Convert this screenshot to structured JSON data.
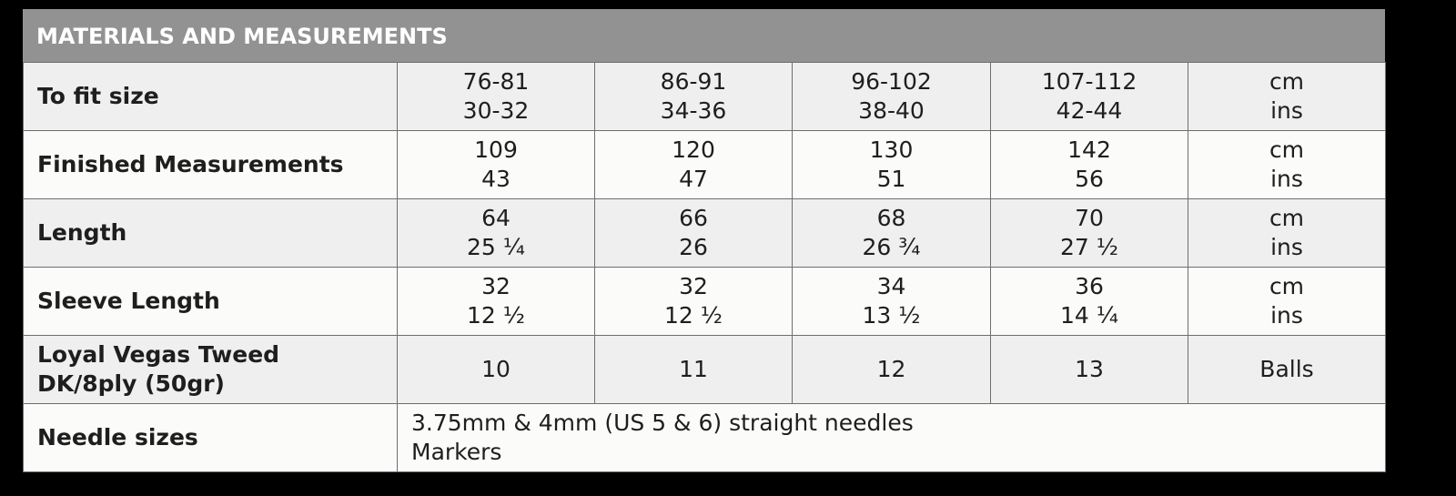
{
  "table": {
    "title": "MATERIALS AND MEASUREMENTS",
    "rows": [
      {
        "label": [
          "To fit size"
        ],
        "cells": [
          [
            "76-81",
            "30-32"
          ],
          [
            "86-91",
            "34-36"
          ],
          [
            "96-102",
            "38-40"
          ],
          [
            "107-112",
            "42-44"
          ],
          [
            "cm",
            "ins"
          ]
        ]
      },
      {
        "label": [
          "Finished Measurements"
        ],
        "cells": [
          [
            "109",
            "43"
          ],
          [
            "120",
            "47"
          ],
          [
            "130",
            "51"
          ],
          [
            "142",
            "56"
          ],
          [
            "cm",
            "ins"
          ]
        ]
      },
      {
        "label": [
          "Length"
        ],
        "cells": [
          [
            "64",
            "25 ¼"
          ],
          [
            "66",
            "26"
          ],
          [
            "68",
            "26 ¾"
          ],
          [
            "70",
            "27 ½"
          ],
          [
            "cm",
            "ins"
          ]
        ]
      },
      {
        "label": [
          "Sleeve Length"
        ],
        "cells": [
          [
            "32",
            "12 ½"
          ],
          [
            "32",
            "12 ½"
          ],
          [
            "34",
            "13 ½"
          ],
          [
            "36",
            "14 ¼"
          ],
          [
            "cm",
            "ins"
          ]
        ]
      },
      {
        "label": [
          "Loyal Vegas Tweed",
          "DK/8ply (50gr)"
        ],
        "cells": [
          [
            "10"
          ],
          [
            "11"
          ],
          [
            "12"
          ],
          [
            "13"
          ],
          [
            "Balls"
          ]
        ]
      },
      {
        "label": [
          "Needle sizes"
        ],
        "note": [
          "3.75mm & 4mm (US 5 & 6) straight needles",
          "Markers"
        ]
      }
    ]
  }
}
